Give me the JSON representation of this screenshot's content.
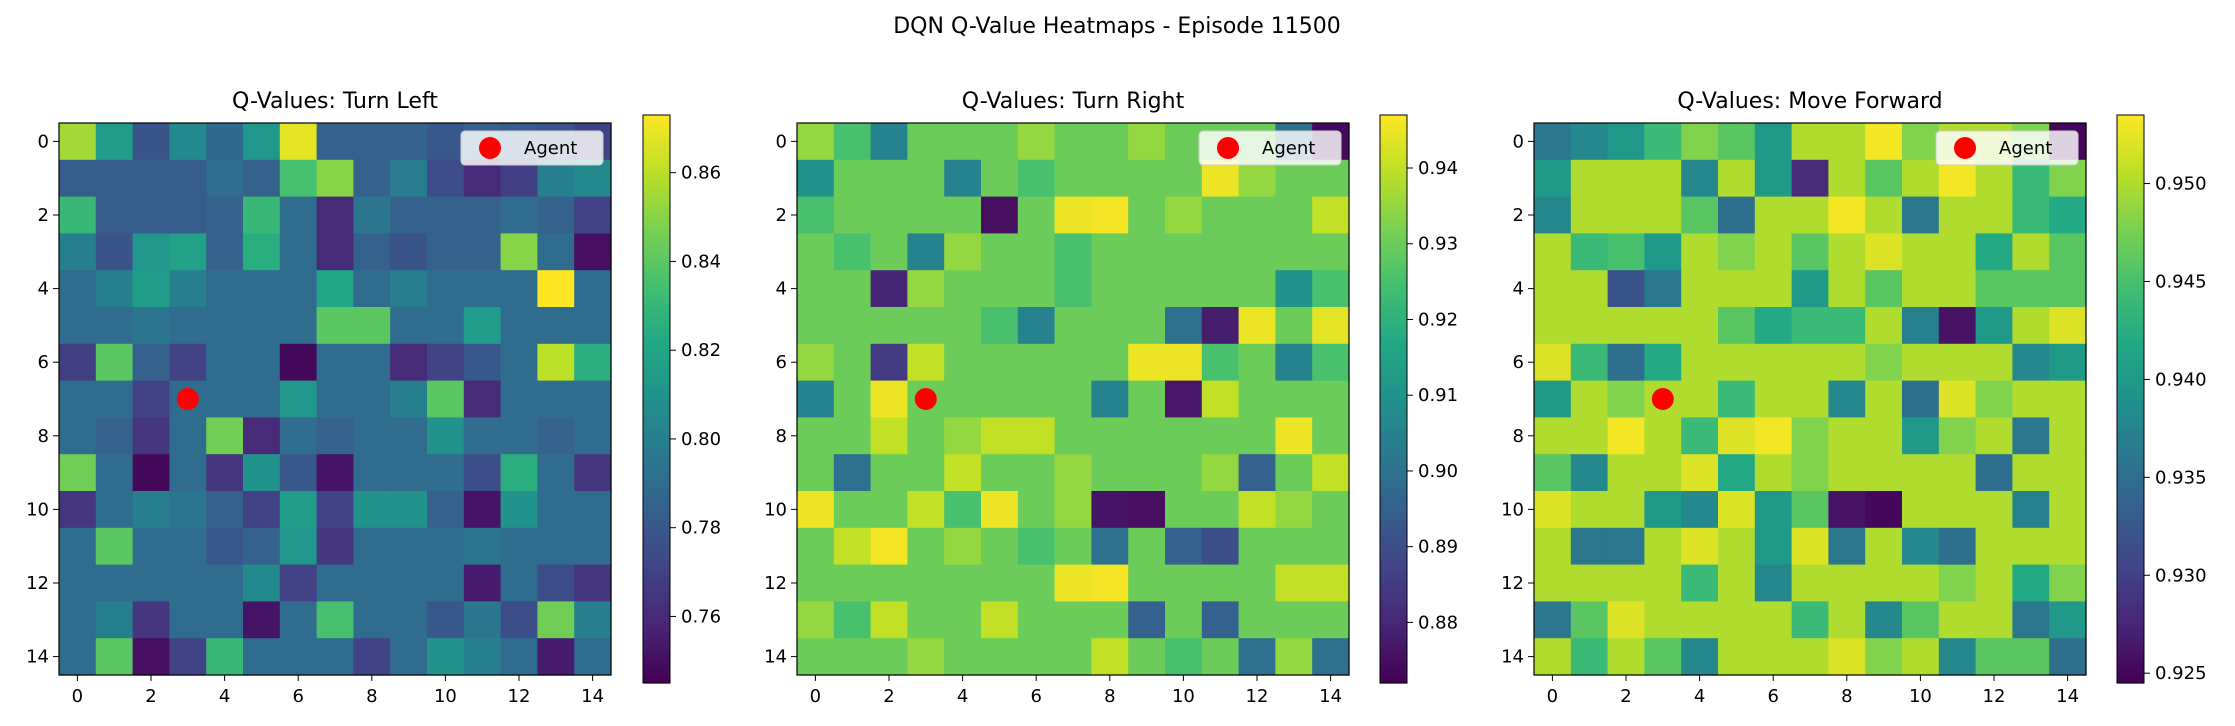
{
  "suptitle": "DQN Q-Value Heatmaps - Episode 11500",
  "legend_label": "Agent",
  "colors": {
    "agent": "#ff0000",
    "colormap": "viridis"
  },
  "chart_data": [
    {
      "type": "heatmap",
      "title": "Q-Values: Turn Left",
      "x_ticks": [
        "0",
        "2",
        "4",
        "6",
        "8",
        "10",
        "12",
        "14"
      ],
      "y_ticks": [
        "0",
        "2",
        "4",
        "6",
        "8",
        "10",
        "12",
        "14"
      ],
      "colorbar_ticks": [
        "0.76",
        "0.78",
        "0.80",
        "0.82",
        "0.84",
        "0.86"
      ],
      "vmin": 0.745,
      "vmax": 0.873,
      "agent": {
        "row": 7,
        "col": 3
      },
      "legend": "upper right",
      "values": [
        [
          0.855,
          0.815,
          0.778,
          0.805,
          0.788,
          0.812,
          0.868,
          0.785,
          0.785,
          0.785,
          0.78,
          0.785,
          0.782,
          0.778,
          0.77
        ],
        [
          0.782,
          0.782,
          0.782,
          0.782,
          0.79,
          0.785,
          0.835,
          0.85,
          0.785,
          0.798,
          0.775,
          0.76,
          0.768,
          0.8,
          0.805
        ],
        [
          0.83,
          0.782,
          0.782,
          0.782,
          0.785,
          0.83,
          0.79,
          0.76,
          0.795,
          0.785,
          0.785,
          0.785,
          0.79,
          0.785,
          0.77
        ],
        [
          0.8,
          0.778,
          0.812,
          0.818,
          0.785,
          0.825,
          0.79,
          0.76,
          0.785,
          0.778,
          0.785,
          0.785,
          0.85,
          0.79,
          0.75
        ],
        [
          0.79,
          0.8,
          0.815,
          0.8,
          0.79,
          0.79,
          0.79,
          0.82,
          0.79,
          0.8,
          0.79,
          0.79,
          0.79,
          0.873,
          0.79
        ],
        [
          0.79,
          0.79,
          0.795,
          0.79,
          0.79,
          0.79,
          0.79,
          0.84,
          0.84,
          0.79,
          0.79,
          0.815,
          0.79,
          0.79,
          0.79
        ],
        [
          0.768,
          0.84,
          0.785,
          0.77,
          0.79,
          0.79,
          0.748,
          0.79,
          0.79,
          0.76,
          0.77,
          0.78,
          0.79,
          0.86,
          0.825
        ],
        [
          0.79,
          0.79,
          0.77,
          0.79,
          0.79,
          0.79,
          0.812,
          0.79,
          0.79,
          0.8,
          0.84,
          0.76,
          0.79,
          0.79,
          0.79
        ],
        [
          0.79,
          0.785,
          0.765,
          0.79,
          0.845,
          0.76,
          0.79,
          0.785,
          0.79,
          0.79,
          0.81,
          0.79,
          0.79,
          0.785,
          0.79
        ],
        [
          0.845,
          0.79,
          0.748,
          0.79,
          0.765,
          0.81,
          0.78,
          0.752,
          0.79,
          0.79,
          0.79,
          0.775,
          0.825,
          0.79,
          0.765
        ],
        [
          0.765,
          0.79,
          0.8,
          0.795,
          0.785,
          0.77,
          0.815,
          0.77,
          0.81,
          0.81,
          0.785,
          0.752,
          0.81,
          0.79,
          0.79
        ],
        [
          0.79,
          0.84,
          0.79,
          0.79,
          0.78,
          0.785,
          0.812,
          0.765,
          0.79,
          0.79,
          0.79,
          0.795,
          0.79,
          0.79,
          0.79
        ],
        [
          0.79,
          0.79,
          0.79,
          0.79,
          0.79,
          0.805,
          0.77,
          0.79,
          0.79,
          0.79,
          0.79,
          0.755,
          0.79,
          0.775,
          0.765
        ],
        [
          0.79,
          0.8,
          0.765,
          0.79,
          0.79,
          0.752,
          0.79,
          0.835,
          0.79,
          0.79,
          0.78,
          0.795,
          0.775,
          0.845,
          0.8
        ],
        [
          0.79,
          0.84,
          0.75,
          0.77,
          0.83,
          0.79,
          0.79,
          0.79,
          0.77,
          0.79,
          0.81,
          0.8,
          0.79,
          0.755,
          0.79
        ]
      ]
    },
    {
      "type": "heatmap",
      "title": "Q-Values: Turn Right",
      "x_ticks": [
        "0",
        "2",
        "4",
        "6",
        "8",
        "10",
        "12",
        "14"
      ],
      "y_ticks": [
        "0",
        "2",
        "4",
        "6",
        "8",
        "10",
        "12",
        "14"
      ],
      "colorbar_ticks": [
        "0.88",
        "0.89",
        "0.90",
        "0.91",
        "0.92",
        "0.93",
        "0.94"
      ],
      "vmin": 0.872,
      "vmax": 0.947,
      "agent": {
        "row": 7,
        "col": 3
      },
      "legend": "upper right",
      "values": [
        [
          0.935,
          0.925,
          0.905,
          0.93,
          0.93,
          0.93,
          0.935,
          0.93,
          0.93,
          0.935,
          0.93,
          0.93,
          0.93,
          0.9,
          0.874
        ],
        [
          0.91,
          0.93,
          0.93,
          0.93,
          0.905,
          0.93,
          0.925,
          0.93,
          0.93,
          0.93,
          0.93,
          0.945,
          0.935,
          0.93,
          0.93
        ],
        [
          0.925,
          0.93,
          0.93,
          0.93,
          0.93,
          0.875,
          0.93,
          0.945,
          0.946,
          0.93,
          0.935,
          0.93,
          0.93,
          0.93,
          0.94
        ],
        [
          0.93,
          0.925,
          0.93,
          0.905,
          0.935,
          0.93,
          0.93,
          0.925,
          0.93,
          0.93,
          0.93,
          0.93,
          0.93,
          0.93,
          0.93
        ],
        [
          0.93,
          0.93,
          0.88,
          0.935,
          0.93,
          0.93,
          0.93,
          0.925,
          0.93,
          0.93,
          0.93,
          0.93,
          0.93,
          0.91,
          0.925
        ],
        [
          0.93,
          0.93,
          0.93,
          0.93,
          0.93,
          0.925,
          0.905,
          0.93,
          0.93,
          0.93,
          0.9,
          0.878,
          0.945,
          0.93,
          0.944
        ],
        [
          0.935,
          0.93,
          0.885,
          0.94,
          0.93,
          0.93,
          0.93,
          0.93,
          0.93,
          0.945,
          0.945,
          0.925,
          0.93,
          0.905,
          0.925
        ],
        [
          0.905,
          0.93,
          0.945,
          0.93,
          0.93,
          0.93,
          0.93,
          0.93,
          0.905,
          0.93,
          0.877,
          0.94,
          0.93,
          0.93,
          0.93
        ],
        [
          0.93,
          0.93,
          0.94,
          0.93,
          0.935,
          0.94,
          0.94,
          0.93,
          0.93,
          0.93,
          0.93,
          0.93,
          0.93,
          0.945,
          0.93
        ],
        [
          0.93,
          0.9,
          0.93,
          0.93,
          0.94,
          0.93,
          0.93,
          0.935,
          0.93,
          0.93,
          0.93,
          0.935,
          0.895,
          0.93,
          0.94
        ],
        [
          0.945,
          0.93,
          0.93,
          0.94,
          0.925,
          0.945,
          0.93,
          0.935,
          0.876,
          0.875,
          0.93,
          0.93,
          0.94,
          0.935,
          0.93
        ],
        [
          0.93,
          0.94,
          0.946,
          0.93,
          0.935,
          0.93,
          0.925,
          0.93,
          0.9,
          0.93,
          0.895,
          0.89,
          0.93,
          0.93,
          0.93
        ],
        [
          0.93,
          0.93,
          0.93,
          0.93,
          0.93,
          0.93,
          0.93,
          0.945,
          0.946,
          0.93,
          0.93,
          0.93,
          0.93,
          0.94,
          0.94
        ],
        [
          0.935,
          0.925,
          0.94,
          0.93,
          0.93,
          0.94,
          0.93,
          0.93,
          0.93,
          0.895,
          0.93,
          0.895,
          0.93,
          0.93,
          0.93
        ],
        [
          0.93,
          0.93,
          0.93,
          0.935,
          0.93,
          0.93,
          0.93,
          0.93,
          0.94,
          0.93,
          0.925,
          0.93,
          0.9,
          0.935,
          0.9
        ]
      ]
    },
    {
      "type": "heatmap",
      "title": "Q-Values: Move Forward",
      "x_ticks": [
        "0",
        "2",
        "4",
        "6",
        "8",
        "10",
        "12",
        "14"
      ],
      "y_ticks": [
        "0",
        "2",
        "4",
        "6",
        "8",
        "10",
        "12",
        "14"
      ],
      "colorbar_ticks": [
        "0.925",
        "0.930",
        "0.935",
        "0.940",
        "0.945",
        "0.950"
      ],
      "vmin": 0.9245,
      "vmax": 0.9535,
      "agent": {
        "row": 7,
        "col": 3
      },
      "legend": "upper right",
      "values": [
        [
          0.936,
          0.938,
          0.94,
          0.944,
          0.948,
          0.946,
          0.94,
          0.95,
          0.95,
          0.953,
          0.948,
          0.95,
          0.95,
          0.948,
          0.925
        ],
        [
          0.94,
          0.95,
          0.95,
          0.95,
          0.938,
          0.95,
          0.94,
          0.928,
          0.95,
          0.946,
          0.95,
          0.953,
          0.95,
          0.944,
          0.948
        ],
        [
          0.938,
          0.95,
          0.95,
          0.95,
          0.946,
          0.935,
          0.95,
          0.95,
          0.953,
          0.95,
          0.936,
          0.95,
          0.95,
          0.944,
          0.942
        ],
        [
          0.95,
          0.944,
          0.945,
          0.94,
          0.95,
          0.948,
          0.95,
          0.946,
          0.95,
          0.952,
          0.95,
          0.95,
          0.942,
          0.95,
          0.946
        ],
        [
          0.95,
          0.95,
          0.932,
          0.936,
          0.95,
          0.95,
          0.95,
          0.94,
          0.95,
          0.946,
          0.95,
          0.95,
          0.946,
          0.946,
          0.946
        ],
        [
          0.95,
          0.95,
          0.95,
          0.95,
          0.95,
          0.946,
          0.942,
          0.944,
          0.944,
          0.95,
          0.937,
          0.926,
          0.94,
          0.95,
          0.952
        ],
        [
          0.952,
          0.944,
          0.935,
          0.942,
          0.95,
          0.95,
          0.95,
          0.95,
          0.95,
          0.948,
          0.95,
          0.95,
          0.95,
          0.938,
          0.94
        ],
        [
          0.94,
          0.95,
          0.948,
          0.95,
          0.95,
          0.944,
          0.95,
          0.95,
          0.938,
          0.95,
          0.935,
          0.952,
          0.948,
          0.95,
          0.95
        ],
        [
          0.95,
          0.95,
          0.953,
          0.95,
          0.944,
          0.952,
          0.953,
          0.948,
          0.95,
          0.95,
          0.94,
          0.948,
          0.95,
          0.936,
          0.95
        ],
        [
          0.946,
          0.938,
          0.95,
          0.95,
          0.952,
          0.942,
          0.95,
          0.948,
          0.95,
          0.95,
          0.95,
          0.95,
          0.935,
          0.95,
          0.95
        ],
        [
          0.952,
          0.95,
          0.95,
          0.94,
          0.938,
          0.952,
          0.94,
          0.946,
          0.926,
          0.925,
          0.95,
          0.95,
          0.95,
          0.937,
          0.95
        ],
        [
          0.95,
          0.936,
          0.936,
          0.95,
          0.952,
          0.95,
          0.94,
          0.952,
          0.936,
          0.95,
          0.938,
          0.935,
          0.95,
          0.95,
          0.95
        ],
        [
          0.95,
          0.95,
          0.95,
          0.95,
          0.944,
          0.95,
          0.938,
          0.95,
          0.95,
          0.95,
          0.95,
          0.948,
          0.95,
          0.942,
          0.948
        ],
        [
          0.936,
          0.946,
          0.952,
          0.95,
          0.95,
          0.95,
          0.95,
          0.944,
          0.95,
          0.938,
          0.946,
          0.95,
          0.95,
          0.936,
          0.94
        ],
        [
          0.95,
          0.944,
          0.95,
          0.946,
          0.938,
          0.95,
          0.95,
          0.95,
          0.952,
          0.948,
          0.95,
          0.938,
          0.946,
          0.946,
          0.935
        ]
      ]
    }
  ]
}
